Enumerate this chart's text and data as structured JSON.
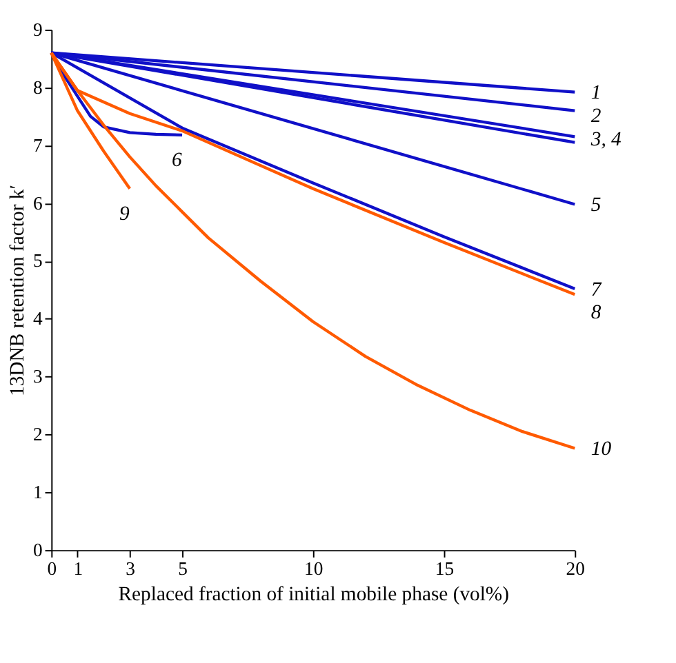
{
  "chart_data": {
    "type": "line",
    "xlabel": "Replaced fraction of initial mobile phase (vol%)",
    "ylabel": "13DNB retention factor k′",
    "xlim": [
      0,
      20
    ],
    "ylim": [
      0,
      9
    ],
    "xticks": [
      0,
      1,
      3,
      5,
      10,
      15,
      20
    ],
    "yticks": [
      0,
      1,
      2,
      3,
      4,
      5,
      6,
      7,
      8,
      9
    ],
    "grid": false,
    "legend": false,
    "marker": "none",
    "line_style": "solid",
    "series": [
      {
        "name": "1",
        "color": "#1010c8",
        "x": [
          0,
          20
        ],
        "values": [
          8.6,
          7.92
        ]
      },
      {
        "name": "2",
        "color": "#1010c8",
        "x": [
          0,
          20
        ],
        "values": [
          8.6,
          7.6
        ]
      },
      {
        "name": "3, 4",
        "color": "#1010c8",
        "x": [
          0,
          20
        ],
        "values": [
          8.6,
          7.15
        ]
      },
      {
        "color": "#1010c8",
        "x": [
          0,
          20
        ],
        "values": [
          8.6,
          7.05
        ]
      },
      {
        "name": "5",
        "color": "#1010c8",
        "x": [
          0,
          20
        ],
        "values": [
          8.6,
          5.98
        ]
      },
      {
        "name": "6",
        "color": "#1010c8",
        "x": [
          0,
          0.5,
          1,
          1.5,
          2,
          3,
          4,
          5
        ],
        "values": [
          8.6,
          8.2,
          7.85,
          7.5,
          7.32,
          7.22,
          7.19,
          7.18
        ]
      },
      {
        "name": "7",
        "color": "#1010c8",
        "x": [
          0,
          5,
          10,
          15,
          20
        ],
        "values": [
          8.6,
          7.3,
          6.35,
          5.42,
          4.52
        ]
      },
      {
        "name": "8",
        "color": "#ff5a00",
        "x": [
          0,
          1,
          3,
          5,
          10,
          15,
          20
        ],
        "values": [
          8.6,
          7.95,
          7.55,
          7.25,
          6.25,
          5.32,
          4.42
        ]
      },
      {
        "name": "9",
        "color": "#ff5a00",
        "x": [
          0,
          1,
          2,
          3
        ],
        "values": [
          8.6,
          7.6,
          6.9,
          6.25
        ]
      },
      {
        "name": "10",
        "color": "#ff5a00",
        "x": [
          0,
          1,
          2,
          3,
          4,
          5,
          6,
          8,
          10,
          12,
          14,
          16,
          18,
          20
        ],
        "values": [
          8.6,
          7.95,
          7.35,
          6.8,
          6.3,
          5.85,
          5.4,
          4.65,
          3.95,
          3.35,
          2.85,
          2.42,
          2.05,
          1.76
        ]
      }
    ]
  }
}
